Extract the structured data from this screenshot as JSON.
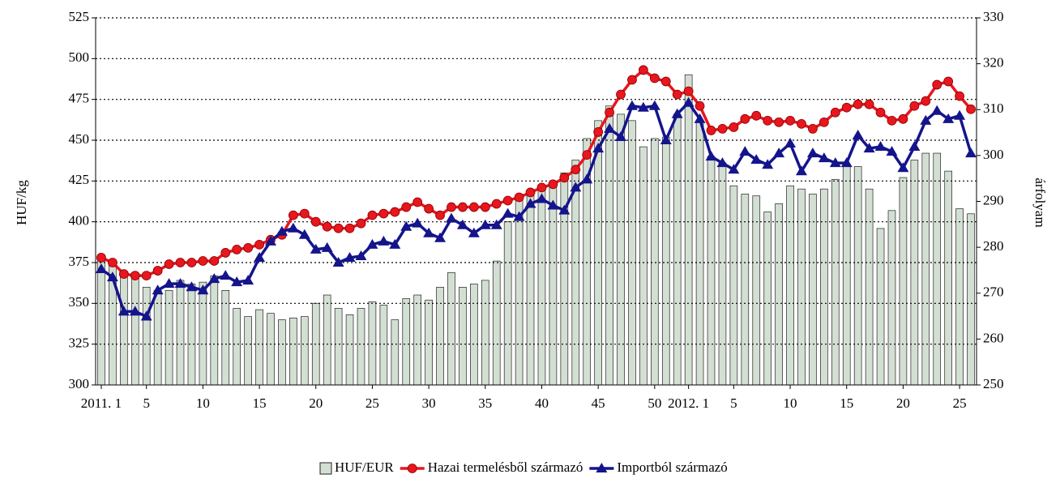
{
  "chart_data": {
    "type": "combo",
    "y_label": "HUF/kg",
    "y2_label": "árfolyam",
    "categories": [
      "2011. 1",
      null,
      null,
      null,
      "5",
      null,
      null,
      null,
      null,
      "10",
      null,
      null,
      null,
      null,
      "15",
      null,
      null,
      null,
      null,
      "20",
      null,
      null,
      null,
      null,
      "25",
      null,
      null,
      null,
      null,
      "30",
      null,
      null,
      null,
      null,
      "35",
      null,
      null,
      null,
      null,
      "40",
      null,
      null,
      null,
      null,
      "45",
      null,
      null,
      null,
      null,
      "50",
      null,
      null,
      "2012. 1",
      null,
      null,
      null,
      "5",
      null,
      null,
      null,
      null,
      "10",
      null,
      null,
      null,
      null,
      "15",
      null,
      null,
      null,
      null,
      "20",
      null,
      null,
      null,
      null,
      "25",
      null
    ],
    "ylim": [
      300,
      525
    ],
    "yticks": [
      300,
      325,
      350,
      375,
      400,
      425,
      450,
      475,
      500,
      525
    ],
    "y2lim": [
      250,
      330
    ],
    "y2ticks": [
      250,
      260,
      270,
      280,
      290,
      300,
      310,
      320,
      330
    ],
    "grid": true,
    "legend": "bottom",
    "series": [
      {
        "name": "HUF/EUR",
        "type": "bar",
        "axis": "y2",
        "color": "#d3dfd3",
        "values": [
          277.4,
          277,
          273.8,
          274.2,
          271.3,
          270.6,
          270.6,
          272.8,
          272,
          272.4,
          273.8,
          270.6,
          266.7,
          264.9,
          266.4,
          265.6,
          264.2,
          264.6,
          264.9,
          267.8,
          269.6,
          266.7,
          265.3,
          266.7,
          268.1,
          267.4,
          264.2,
          268.8,
          269.6,
          268.5,
          271.3,
          274.5,
          271.3,
          272,
          272.8,
          277,
          285.6,
          290.2,
          291.2,
          293,
          293,
          296.2,
          299,
          303.7,
          307.6,
          310.8,
          309,
          307.6,
          301.9,
          303.7,
          304,
          309,
          317.6,
          307.2,
          299.8,
          298.4,
          293.4,
          291.6,
          291.2,
          287.7,
          289.5,
          293.4,
          292.7,
          291.6,
          292.7,
          294.8,
          297.6,
          297.6,
          292.7,
          284.1,
          288,
          295.2,
          299,
          300.5,
          300.5,
          296.6,
          288.4,
          287.3
        ]
      },
      {
        "name": "Hazai termelésből származó",
        "type": "line",
        "marker": "circle",
        "color": "#e8161e",
        "values": [
          378,
          375,
          368,
          367,
          367,
          370,
          374,
          375,
          375,
          376,
          376,
          381,
          383,
          384,
          386,
          389,
          392,
          404,
          405,
          400,
          397,
          396,
          396,
          399,
          404,
          405,
          406,
          409,
          412,
          408,
          404,
          409,
          409,
          409,
          409,
          411,
          413,
          415,
          418,
          421,
          423,
          427,
          432,
          441,
          455,
          467,
          478,
          487,
          493,
          488,
          486,
          478,
          480,
          471,
          456,
          457,
          458,
          463,
          465,
          462,
          461,
          462,
          460,
          457,
          461,
          467,
          470,
          472,
          472,
          467,
          462,
          463,
          471,
          474,
          484,
          486,
          477,
          469
        ]
      },
      {
        "name": "Importból származó",
        "type": "line",
        "marker": "triangle",
        "color": "#14148c",
        "values": [
          371,
          366,
          345,
          345,
          342,
          358,
          362,
          362,
          360,
          358,
          365,
          367,
          363,
          364,
          378,
          388,
          394,
          396,
          392,
          383,
          384,
          375,
          378,
          379,
          386,
          388,
          386,
          397,
          399,
          393,
          390,
          402,
          398,
          393,
          398,
          398,
          405,
          403,
          411,
          414,
          410,
          407,
          421,
          426,
          445,
          457,
          452,
          471,
          470,
          471,
          450,
          466,
          473,
          463,
          440,
          436,
          432,
          443,
          438,
          435,
          442,
          448,
          431,
          442,
          439,
          436,
          436,
          453,
          445,
          446,
          443,
          433,
          446,
          462,
          468,
          463,
          465,
          442
        ]
      }
    ]
  }
}
